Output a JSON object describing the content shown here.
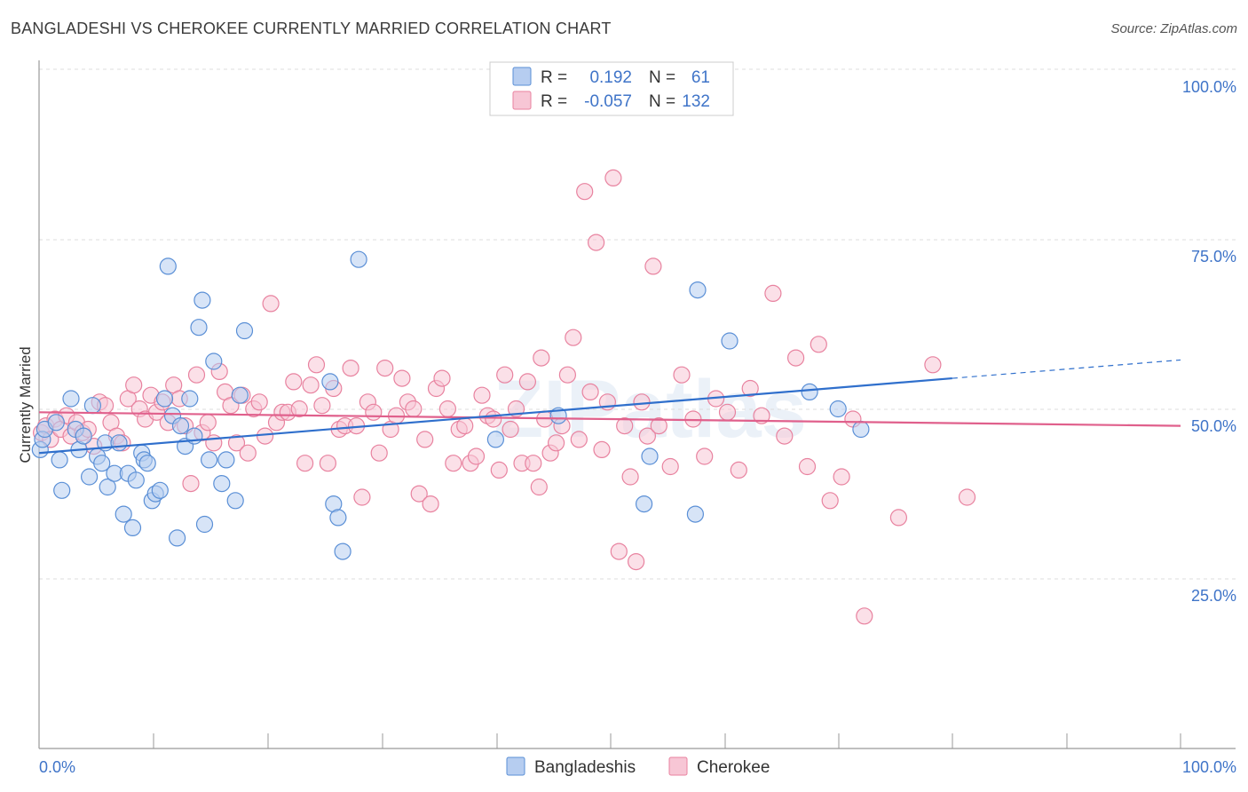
{
  "title": "BANGLADESHI VS CHEROKEE CURRENTLY MARRIED CORRELATION CHART",
  "source": "Source: ZipAtlas.com",
  "colors": {
    "bangladeshi_fill": "#b6cdf0",
    "bangladeshi_stroke": "#5a8fd6",
    "bangladeshi_line": "#2f6fcc",
    "cherokee_fill": "#f7c6d5",
    "cherokee_stroke": "#e8829f",
    "cherokee_line": "#e0608c",
    "tick_label": "#3f74c8",
    "grid": "#dddddd"
  },
  "legend": {
    "row1": {
      "r_label": "R =",
      "r_value": "0.192",
      "n_label": "N =",
      "n_value": "61"
    },
    "row2": {
      "r_label": "R =",
      "r_value": "-0.057",
      "n_label": "N =",
      "n_value": "132"
    }
  },
  "bottom_legend": {
    "series1": "Bangladeshis",
    "series2": "Cherokee"
  },
  "watermark": "ZIPatlas",
  "chart_data": {
    "type": "scatter",
    "title": "BANGLADESHI VS CHEROKEE CURRENTLY MARRIED CORRELATION CHART",
    "xlabel": "",
    "ylabel": "Currently Married",
    "xlim": [
      0,
      100
    ],
    "ylim": [
      0,
      100
    ],
    "x_tick_labels": [
      "0.0%",
      "100.0%"
    ],
    "y_ticks": [
      25,
      50,
      75,
      100
    ],
    "y_tick_labels": [
      "25.0%",
      "50.0%",
      "75.0%",
      "100.0%"
    ],
    "grid": "horizontal dashed",
    "legend_placement": "top-center",
    "series": [
      {
        "name": "Bangladeshis",
        "r": 0.192,
        "n": 61,
        "trend": {
          "x0": 0,
          "y0": 43.5,
          "x1": 80,
          "y1": 54.5,
          "dashed_to_x": 100,
          "dashed_y1": 57.2
        },
        "points": [
          [
            0.1,
            44.0
          ],
          [
            0.3,
            45.5
          ],
          [
            0.5,
            47.0
          ],
          [
            1.5,
            48.0
          ],
          [
            1.8,
            42.5
          ],
          [
            2.0,
            38.0
          ],
          [
            2.8,
            51.5
          ],
          [
            3.2,
            47.0
          ],
          [
            3.5,
            44.0
          ],
          [
            3.9,
            46.0
          ],
          [
            4.4,
            40.0
          ],
          [
            4.7,
            50.5
          ],
          [
            5.1,
            43.0
          ],
          [
            5.5,
            42.0
          ],
          [
            5.8,
            45.0
          ],
          [
            6.0,
            38.5
          ],
          [
            6.6,
            40.5
          ],
          [
            7.0,
            45.0
          ],
          [
            7.4,
            34.5
          ],
          [
            7.8,
            40.5
          ],
          [
            8.2,
            32.5
          ],
          [
            8.5,
            39.5
          ],
          [
            9.0,
            43.5
          ],
          [
            9.2,
            42.5
          ],
          [
            9.5,
            42.0
          ],
          [
            9.9,
            36.5
          ],
          [
            10.2,
            37.5
          ],
          [
            10.6,
            38.0
          ],
          [
            11.0,
            51.5
          ],
          [
            11.3,
            71.0
          ],
          [
            11.7,
            49.0
          ],
          [
            12.1,
            31.0
          ],
          [
            12.4,
            47.5
          ],
          [
            12.8,
            44.5
          ],
          [
            13.2,
            51.5
          ],
          [
            13.6,
            46.0
          ],
          [
            14.0,
            62.0
          ],
          [
            14.3,
            66.0
          ],
          [
            14.5,
            33.0
          ],
          [
            14.9,
            42.5
          ],
          [
            15.3,
            57.0
          ],
          [
            16.0,
            39.0
          ],
          [
            16.4,
            42.5
          ],
          [
            17.2,
            36.5
          ],
          [
            17.6,
            52.0
          ],
          [
            18.0,
            61.5
          ],
          [
            25.5,
            54.0
          ],
          [
            25.8,
            36.0
          ],
          [
            26.2,
            34.0
          ],
          [
            26.6,
            29.0
          ],
          [
            28.0,
            72.0
          ],
          [
            40.0,
            45.5
          ],
          [
            45.5,
            49.0
          ],
          [
            53.0,
            36.0
          ],
          [
            53.5,
            43.0
          ],
          [
            57.5,
            34.5
          ],
          [
            60.5,
            60.0
          ],
          [
            67.5,
            52.5
          ],
          [
            70.0,
            50.0
          ],
          [
            72.0,
            47.0
          ],
          [
            57.7,
            67.5
          ]
        ]
      },
      {
        "name": "Cherokee",
        "r": -0.057,
        "n": 132,
        "trend": {
          "x0": 0,
          "y0": 49.5,
          "x1": 100,
          "y1": 47.5
        },
        "points": [
          [
            0.2,
            46.5
          ],
          [
            0.6,
            47.5
          ],
          [
            1.0,
            45.5
          ],
          [
            1.4,
            48.5
          ],
          [
            1.9,
            47.0
          ],
          [
            2.4,
            49.0
          ],
          [
            2.8,
            46.0
          ],
          [
            3.3,
            48.0
          ],
          [
            3.8,
            46.5
          ],
          [
            4.3,
            47.0
          ],
          [
            4.8,
            44.5
          ],
          [
            5.3,
            51.0
          ],
          [
            5.8,
            50.5
          ],
          [
            6.3,
            48.0
          ],
          [
            6.8,
            46.0
          ],
          [
            7.3,
            45.0
          ],
          [
            7.8,
            51.5
          ],
          [
            8.3,
            53.5
          ],
          [
            8.8,
            50.0
          ],
          [
            9.3,
            48.5
          ],
          [
            9.8,
            52.0
          ],
          [
            10.3,
            49.5
          ],
          [
            10.8,
            51.0
          ],
          [
            11.3,
            48.0
          ],
          [
            11.8,
            53.5
          ],
          [
            12.3,
            51.5
          ],
          [
            12.8,
            47.5
          ],
          [
            13.3,
            39.0
          ],
          [
            13.8,
            55.0
          ],
          [
            14.3,
            46.5
          ],
          [
            14.8,
            48.0
          ],
          [
            15.3,
            45.0
          ],
          [
            15.8,
            55.5
          ],
          [
            16.3,
            52.5
          ],
          [
            16.8,
            50.5
          ],
          [
            17.3,
            45.0
          ],
          [
            17.8,
            52.0
          ],
          [
            18.3,
            43.5
          ],
          [
            18.8,
            50.0
          ],
          [
            19.3,
            51.0
          ],
          [
            19.8,
            46.0
          ],
          [
            20.3,
            65.5
          ],
          [
            20.8,
            48.0
          ],
          [
            21.3,
            49.5
          ],
          [
            21.8,
            49.5
          ],
          [
            22.3,
            54.0
          ],
          [
            22.8,
            50.0
          ],
          [
            23.3,
            42.0
          ],
          [
            23.8,
            53.5
          ],
          [
            24.3,
            56.5
          ],
          [
            24.8,
            50.5
          ],
          [
            25.3,
            42.0
          ],
          [
            25.8,
            53.0
          ],
          [
            26.3,
            47.0
          ],
          [
            26.8,
            47.5
          ],
          [
            27.3,
            56.0
          ],
          [
            27.8,
            47.5
          ],
          [
            28.3,
            37.0
          ],
          [
            28.8,
            51.0
          ],
          [
            29.3,
            49.5
          ],
          [
            29.8,
            43.5
          ],
          [
            30.3,
            56.0
          ],
          [
            30.8,
            47.0
          ],
          [
            31.3,
            49.0
          ],
          [
            31.8,
            54.5
          ],
          [
            32.3,
            51.0
          ],
          [
            32.8,
            50.0
          ],
          [
            33.3,
            37.5
          ],
          [
            33.8,
            45.5
          ],
          [
            34.3,
            36.0
          ],
          [
            34.8,
            53.0
          ],
          [
            35.3,
            54.5
          ],
          [
            35.8,
            50.0
          ],
          [
            36.3,
            42.0
          ],
          [
            36.8,
            47.0
          ],
          [
            37.3,
            47.5
          ],
          [
            37.8,
            42.0
          ],
          [
            38.3,
            43.0
          ],
          [
            38.8,
            52.0
          ],
          [
            39.3,
            49.0
          ],
          [
            39.8,
            48.5
          ],
          [
            40.3,
            41.0
          ],
          [
            40.8,
            55.0
          ],
          [
            41.3,
            47.0
          ],
          [
            41.8,
            50.0
          ],
          [
            42.3,
            42.0
          ],
          [
            42.8,
            54.0
          ],
          [
            43.3,
            42.0
          ],
          [
            43.8,
            38.5
          ],
          [
            44.3,
            48.5
          ],
          [
            44.8,
            43.5
          ],
          [
            45.3,
            45.0
          ],
          [
            45.8,
            47.5
          ],
          [
            46.3,
            55.0
          ],
          [
            46.8,
            60.5
          ],
          [
            47.3,
            45.5
          ],
          [
            47.8,
            82.0
          ],
          [
            48.3,
            52.5
          ],
          [
            48.8,
            74.5
          ],
          [
            49.3,
            44.0
          ],
          [
            49.8,
            51.0
          ],
          [
            50.3,
            84.0
          ],
          [
            50.8,
            29.0
          ],
          [
            51.3,
            47.5
          ],
          [
            51.8,
            40.0
          ],
          [
            52.3,
            27.5
          ],
          [
            52.8,
            51.0
          ],
          [
            53.3,
            46.0
          ],
          [
            53.8,
            71.0
          ],
          [
            54.3,
            47.5
          ],
          [
            55.3,
            41.5
          ],
          [
            56.3,
            55.0
          ],
          [
            57.3,
            48.5
          ],
          [
            58.3,
            43.0
          ],
          [
            59.3,
            51.5
          ],
          [
            60.3,
            49.5
          ],
          [
            61.3,
            41.0
          ],
          [
            62.3,
            53.0
          ],
          [
            63.3,
            49.0
          ],
          [
            64.3,
            67.0
          ],
          [
            65.3,
            46.0
          ],
          [
            66.3,
            57.5
          ],
          [
            67.3,
            41.5
          ],
          [
            68.3,
            59.5
          ],
          [
            69.3,
            36.5
          ],
          [
            70.3,
            40.0
          ],
          [
            71.3,
            48.5
          ],
          [
            72.3,
            19.5
          ],
          [
            75.3,
            34.0
          ],
          [
            78.3,
            56.5
          ],
          [
            81.3,
            37.0
          ],
          [
            44.0,
            57.5
          ]
        ]
      }
    ]
  }
}
